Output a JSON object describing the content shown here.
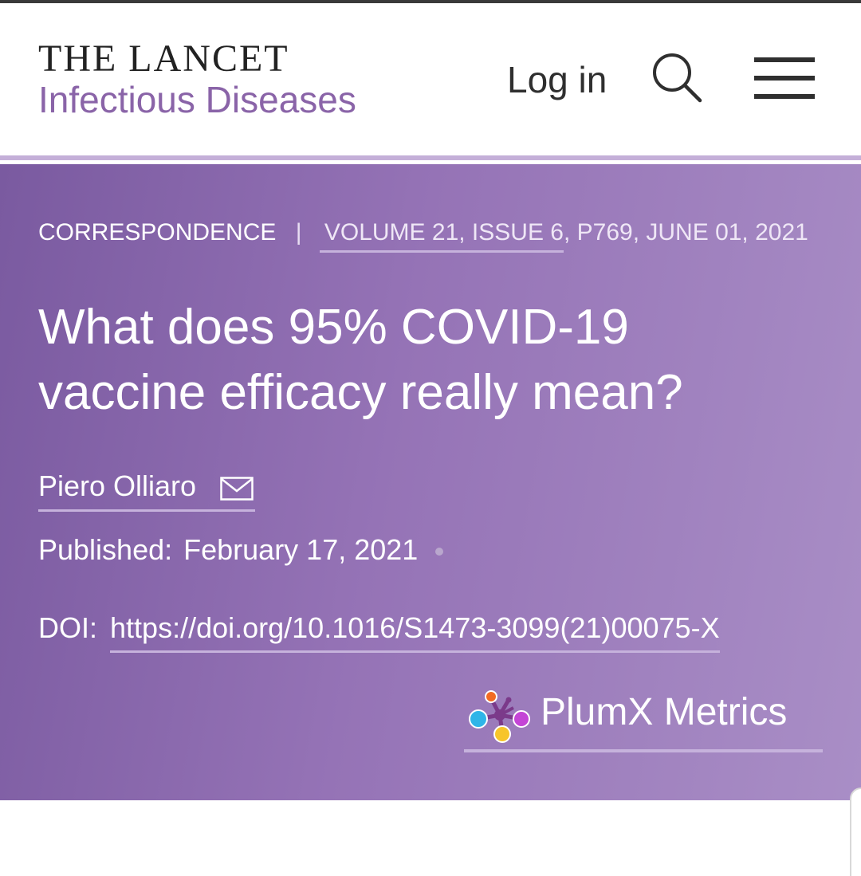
{
  "header": {
    "journal_name": "THE LANCET",
    "journal_subtitle": "Infectious Diseases",
    "login_label": "Log in",
    "search_icon": "search-icon",
    "menu_icon": "hamburger-menu-icon"
  },
  "article": {
    "type": "CORRESPONDENCE",
    "separator": "|",
    "issue_link": "VOLUME 21, ISSUE 6",
    "issue_rest": ", P769, JUNE 01, 2021",
    "title": "What does 95% COVID-19 vaccine efficacy really mean?",
    "author": "Piero Olliaro",
    "published_label": "Published:",
    "published_date": "February 17, 2021",
    "doi_label": "DOI:",
    "doi_url": "https://doi.org/10.1016/S1473-3099(21)00075-X",
    "plumx_label": "PlumX Metrics"
  },
  "colors": {
    "brand_purple": "#8a64a8",
    "hero_start": "#7a5aa0",
    "hero_end": "#a98ec6",
    "underline": "#c6b2dc",
    "plum_blue": "#2fb5e8",
    "plum_orange": "#f26b22",
    "plum_yellow": "#f7c52a",
    "plum_magenta": "#c445d6",
    "plum_center": "#7b3a8a"
  }
}
